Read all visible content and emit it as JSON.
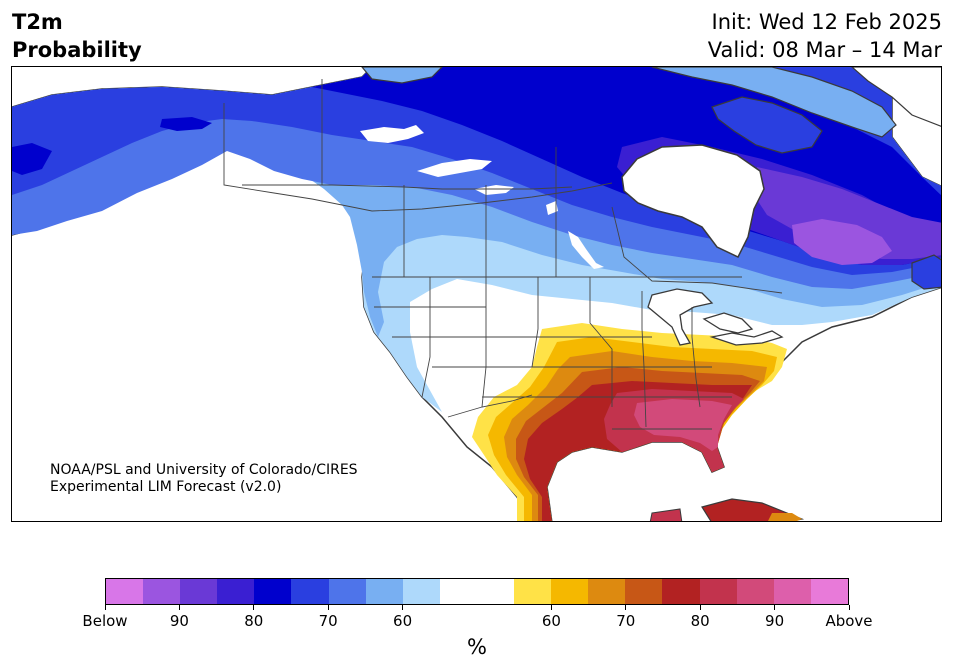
{
  "header": {
    "title_line1": "T2m",
    "title_line2": "Probability",
    "init_line": "Init: Wed 12 Feb 2025",
    "valid_line": "Valid: 08 Mar – 14 Mar"
  },
  "credit": {
    "line1": "NOAA/PSL and University of Colorado/CIRES",
    "line2": "Experimental LIM Forecast (v2.0)"
  },
  "colorbar": {
    "units": "%",
    "colors": [
      "#d876e8",
      "#9b55e0",
      "#6a39d6",
      "#3a1fd2",
      "#0000cd",
      "#2a3fe0",
      "#4e74ea",
      "#78aff2",
      "#aed9fb",
      "#ffffff",
      "#ffffff",
      "#ffe247",
      "#f5b800",
      "#dd8a10",
      "#c75716",
      "#b22222",
      "#c2334d",
      "#d24a7a",
      "#dd5fab",
      "#e87ad9"
    ],
    "tick_labels": [
      "Below",
      "90",
      "80",
      "70",
      "60",
      "60",
      "70",
      "80",
      "90",
      "Above"
    ]
  },
  "map": {
    "colors": {
      "land_neutral": "#ffffff",
      "coast": "#3a3a3a",
      "lake": "#ffffff"
    }
  }
}
